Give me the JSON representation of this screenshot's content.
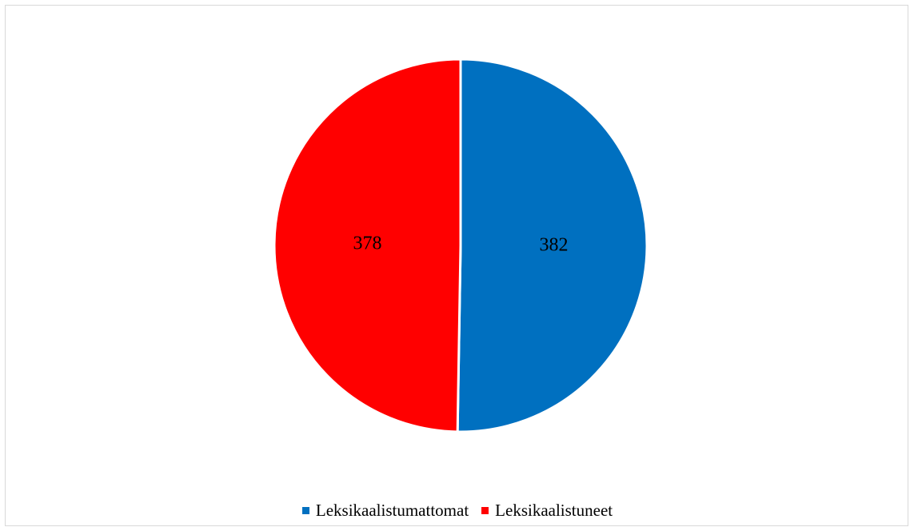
{
  "chart_data": {
    "type": "pie",
    "categories": [
      "Leksikaalistumattomat",
      "Leksikaalistuneet"
    ],
    "values": [
      382,
      378
    ],
    "colors": [
      "#0070C0",
      "#FF0000"
    ],
    "data_labels": [
      "382",
      "378"
    ],
    "legend_position": "bottom",
    "title": ""
  },
  "legend": {
    "items": [
      {
        "label": "Leksikaalistumattomat",
        "color": "#0070C0"
      },
      {
        "label": "Leksikaalistuneet",
        "color": "#FF0000"
      }
    ]
  }
}
